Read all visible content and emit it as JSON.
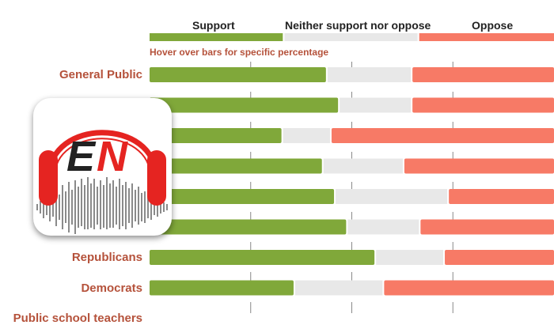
{
  "header": {
    "support_label": "Support",
    "neither_label": "Neither support nor oppose",
    "oppose_label": "Oppose",
    "hover_note": "Hover over bars for specific percentage"
  },
  "colors": {
    "support": "#80a83a",
    "neither": "#e8e8e8",
    "oppose": "#f77a66",
    "label": "#b5523b"
  },
  "app_icon": {
    "name": "en-headphones-icon",
    "text_e": "E",
    "text_n": "N"
  },
  "chart_data": {
    "type": "bar",
    "stacked": true,
    "orientation": "horizontal",
    "series_names": [
      "Support",
      "Neither support nor oppose",
      "Oppose"
    ],
    "legend_position": "top",
    "rows": [
      {
        "label": "General Public",
        "support": 44,
        "neither": 21,
        "oppose": 35
      },
      {
        "label": "",
        "support": 47,
        "neither": 18,
        "oppose": 35
      },
      {
        "label": "",
        "support": 33,
        "neither": 12,
        "oppose": 55
      },
      {
        "label": "",
        "support": 43,
        "neither": 20,
        "oppose": 37
      },
      {
        "label": "",
        "support": 46,
        "neither": 28,
        "oppose": 26
      },
      {
        "label": "",
        "support": 49,
        "neither": 18,
        "oppose": 33
      },
      {
        "label": "Republicans",
        "support": 56,
        "neither": 17,
        "oppose": 27
      },
      {
        "label": "Democrats",
        "support": 36,
        "neither": 22,
        "oppose": 42
      },
      {
        "label": "Public school teachers",
        "support": null,
        "neither": null,
        "oppose": null
      }
    ],
    "xlim": [
      0,
      100
    ],
    "grid": true
  }
}
